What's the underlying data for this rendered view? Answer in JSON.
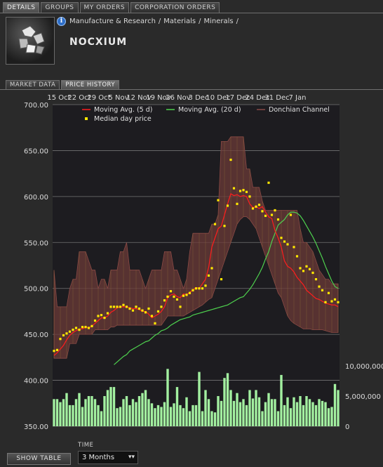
{
  "tabs": [
    "DETAILS",
    "GROUPS",
    "MY ORDERS",
    "CORPORATION ORDERS"
  ],
  "breadcrumb": [
    "Manufacture & Research",
    "/",
    "Materials",
    "/",
    "Minerals",
    "/"
  ],
  "item_name": "NOCXIUM",
  "sub_tabs": [
    "MARKET DATA",
    "PRICE HISTORY"
  ],
  "controls": {
    "show_table_label": "SHOW TABLE",
    "time_label": "TIME",
    "time_value": "3 Months"
  },
  "icons": {
    "info": "info-icon",
    "item": "nocxium-item-icon",
    "dropdown": "double-chevron-down-icon"
  },
  "colors": {
    "ma5": "#ff1d1d",
    "ma20": "#4ed14e",
    "donchian": "#6b3a37",
    "median": "#ffe800",
    "volume": "#a3f0a0"
  },
  "chart_data": {
    "type": "line",
    "x_ticks": [
      "15 Oct",
      "22 Oct",
      "29 Oct",
      "5 Nov",
      "12 Nov",
      "19 Nov",
      "26 Nov",
      "3 Dec",
      "10 Dec",
      "17 Dec",
      "24 Dec",
      "31 Dec",
      "7 Jan"
    ],
    "price_axis": {
      "ylim": [
        350,
        700
      ],
      "ticks": [
        "350.00",
        "400.00",
        "450.00",
        "500.00",
        "550.00",
        "600.00",
        "650.00",
        "700.00"
      ]
    },
    "volume_axis": {
      "ylim": [
        0,
        15000000
      ],
      "ticks": [
        "0",
        "5,000,000",
        "10,000,000"
      ]
    },
    "legend": [
      "Moving Avg. (5 d)",
      "Moving Avg. (20 d)",
      "Donchian Channel",
      "Median day price"
    ],
    "days": 91,
    "median": [
      432,
      433,
      445,
      449,
      451,
      453,
      455,
      457,
      455,
      458,
      458,
      457,
      459,
      465,
      470,
      471,
      468,
      473,
      480,
      480,
      480,
      480,
      482,
      480,
      478,
      476,
      480,
      478,
      476,
      474,
      478,
      470,
      462,
      475,
      480,
      487,
      491,
      497,
      491,
      488,
      480,
      492,
      493,
      495,
      498,
      500,
      500,
      500,
      503,
      514,
      522,
      570,
      596,
      510,
      568,
      590,
      640,
      609,
      592,
      606,
      607,
      605,
      600,
      587,
      589,
      591,
      584,
      579,
      615,
      580,
      585,
      575,
      555,
      551,
      548,
      580,
      545,
      535,
      522,
      519,
      524,
      521,
      517,
      510,
      502,
      498,
      485,
      495,
      486,
      488,
      485
    ],
    "ma5": [
      427,
      430,
      434,
      438,
      444,
      449,
      452,
      454,
      456,
      456,
      458,
      457,
      459,
      462,
      465,
      468,
      468,
      470,
      474,
      476,
      479,
      480,
      480,
      480,
      479,
      478,
      478,
      477,
      475,
      475,
      472,
      468,
      470,
      472,
      475,
      480,
      490,
      493,
      494,
      491,
      490,
      494,
      493,
      496,
      498,
      501,
      500,
      505,
      510,
      523,
      545,
      555,
      565,
      568,
      580,
      592,
      603,
      601,
      602,
      600,
      601,
      600,
      592,
      588,
      589,
      587,
      589,
      583,
      578,
      576,
      563,
      555,
      545,
      530,
      524,
      522,
      518,
      512,
      508,
      504,
      498,
      495,
      492,
      489,
      488,
      486,
      484,
      483,
      482,
      482,
      480
    ],
    "ma20": [
      417,
      420,
      423,
      426,
      428,
      432,
      434,
      436,
      438,
      440,
      442,
      443,
      446,
      449,
      451,
      454,
      455,
      457,
      460,
      462,
      464,
      466,
      467,
      468,
      469,
      471,
      472,
      473,
      474,
      475,
      476,
      477,
      478,
      479,
      480,
      481,
      482,
      484,
      486,
      488,
      490,
      491,
      495,
      499,
      504,
      510,
      516,
      523,
      532,
      540,
      551,
      560,
      569,
      572,
      575,
      580,
      583,
      583,
      582,
      579,
      574,
      568,
      562,
      556,
      549,
      541,
      533,
      524,
      516,
      508,
      502,
      500
    ],
    "donchian_high": [
      520,
      480,
      480,
      480,
      480,
      500,
      510,
      510,
      540,
      540,
      540,
      530,
      520,
      520,
      500,
      510,
      510,
      500,
      520,
      520,
      520,
      540,
      540,
      550,
      520,
      520,
      520,
      520,
      510,
      500,
      510,
      520,
      520,
      520,
      520,
      540,
      540,
      540,
      520,
      520,
      510,
      500,
      510,
      540,
      560,
      560,
      560,
      560,
      560,
      560,
      570,
      570,
      580,
      660,
      660,
      660,
      665,
      665,
      665,
      665,
      665,
      630,
      630,
      610,
      610,
      610,
      595,
      585,
      585,
      585,
      585,
      585,
      585,
      585,
      585,
      585,
      585,
      585,
      565,
      550,
      550,
      545,
      540,
      530,
      520,
      515,
      510,
      510,
      505,
      505,
      505
    ],
    "donchian_low": [
      424,
      424,
      424,
      424,
      424,
      440,
      440,
      440,
      450,
      450,
      450,
      450,
      450,
      455,
      455,
      455,
      455,
      455,
      458,
      458,
      460,
      460,
      460,
      460,
      460,
      460,
      460,
      460,
      460,
      460,
      460,
      460,
      460,
      460,
      460,
      465,
      470,
      470,
      470,
      470,
      470,
      470,
      472,
      474,
      476,
      478,
      480,
      482,
      485,
      488,
      490,
      500,
      510,
      520,
      530,
      540,
      550,
      560,
      570,
      575,
      578,
      578,
      575,
      570,
      565,
      555,
      545,
      535,
      525,
      515,
      505,
      495,
      490,
      480,
      470,
      465,
      462,
      460,
      458,
      456,
      456,
      456,
      455,
      455,
      455,
      455,
      454,
      453,
      452,
      452,
      452
    ],
    "volume": [
      4.5,
      4.5,
      4,
      4.5,
      5.5,
      3.5,
      3.5,
      4.5,
      5.5,
      3.2,
      4.5,
      5,
      5,
      4.5,
      3.5,
      2.5,
      5,
      6,
      6.5,
      6.5,
      3,
      3.2,
      4.5,
      5,
      3.5,
      4.5,
      4,
      5,
      5.5,
      6,
      4.5,
      3.8,
      3,
      3.5,
      3.2,
      4,
      9.5,
      3.2,
      3.8,
      6.5,
      3.5,
      3,
      4.8,
      2.5,
      3.5,
      3.5,
      9,
      2.5,
      6,
      4.5,
      2.5,
      2.3,
      5,
      4.2,
      8,
      8.8,
      6,
      4.2,
      5.5,
      4,
      4.5,
      3.5,
      6,
      4.6,
      6,
      4.8,
      2.5,
      4,
      5.5,
      4.5,
      4.5,
      2.5,
      8.5,
      3.5,
      4.8,
      3,
      4.8,
      4,
      5,
      3.5,
      5,
      4.5,
      4,
      3.5,
      4.5,
      4.2,
      4,
      3,
      3.2,
      7,
      6
    ]
  }
}
